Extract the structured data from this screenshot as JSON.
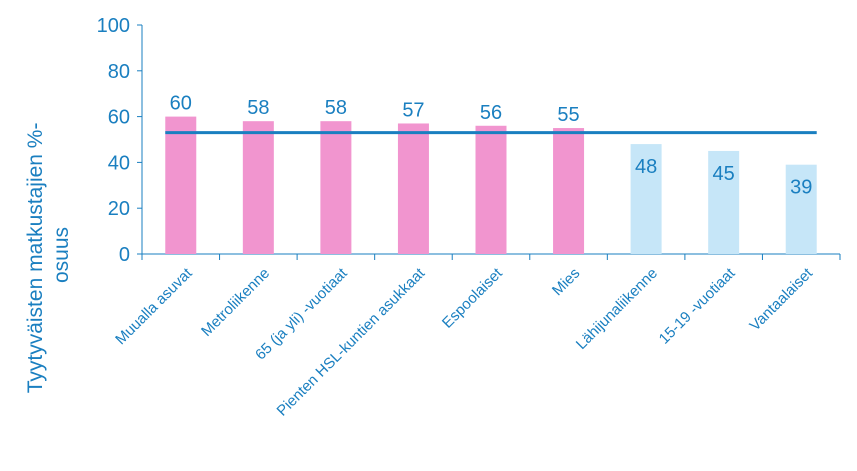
{
  "chart_data": {
    "type": "bar",
    "ylabel_lines": [
      "Tyytyväisten matkustajien %-",
      "osuus"
    ],
    "ylim": [
      0,
      100
    ],
    "yticks": [
      0,
      20,
      40,
      60,
      80,
      100
    ],
    "grid": false,
    "categories": [
      "Muualla asuvat",
      "Metroliikenne",
      "65  (ja yli) -vuotiaat",
      "Pienten HSL-kuntien asukkaat",
      "Espoolaiset",
      "Mies",
      "Lähijunaliikenne",
      "15-19 -vuotiaat",
      "Vantaalaiset"
    ],
    "values": [
      60,
      58,
      58,
      57,
      56,
      55,
      48,
      45,
      39
    ],
    "bar_colors": [
      "#f195cf",
      "#f195cf",
      "#f195cf",
      "#f195cf",
      "#f195cf",
      "#f195cf",
      "#c6e6f8",
      "#c6e6f8",
      "#c6e6f8"
    ],
    "reference_line": {
      "value": 53,
      "color": "#1a7fc0"
    },
    "axis_color": "#1a7fc0"
  }
}
